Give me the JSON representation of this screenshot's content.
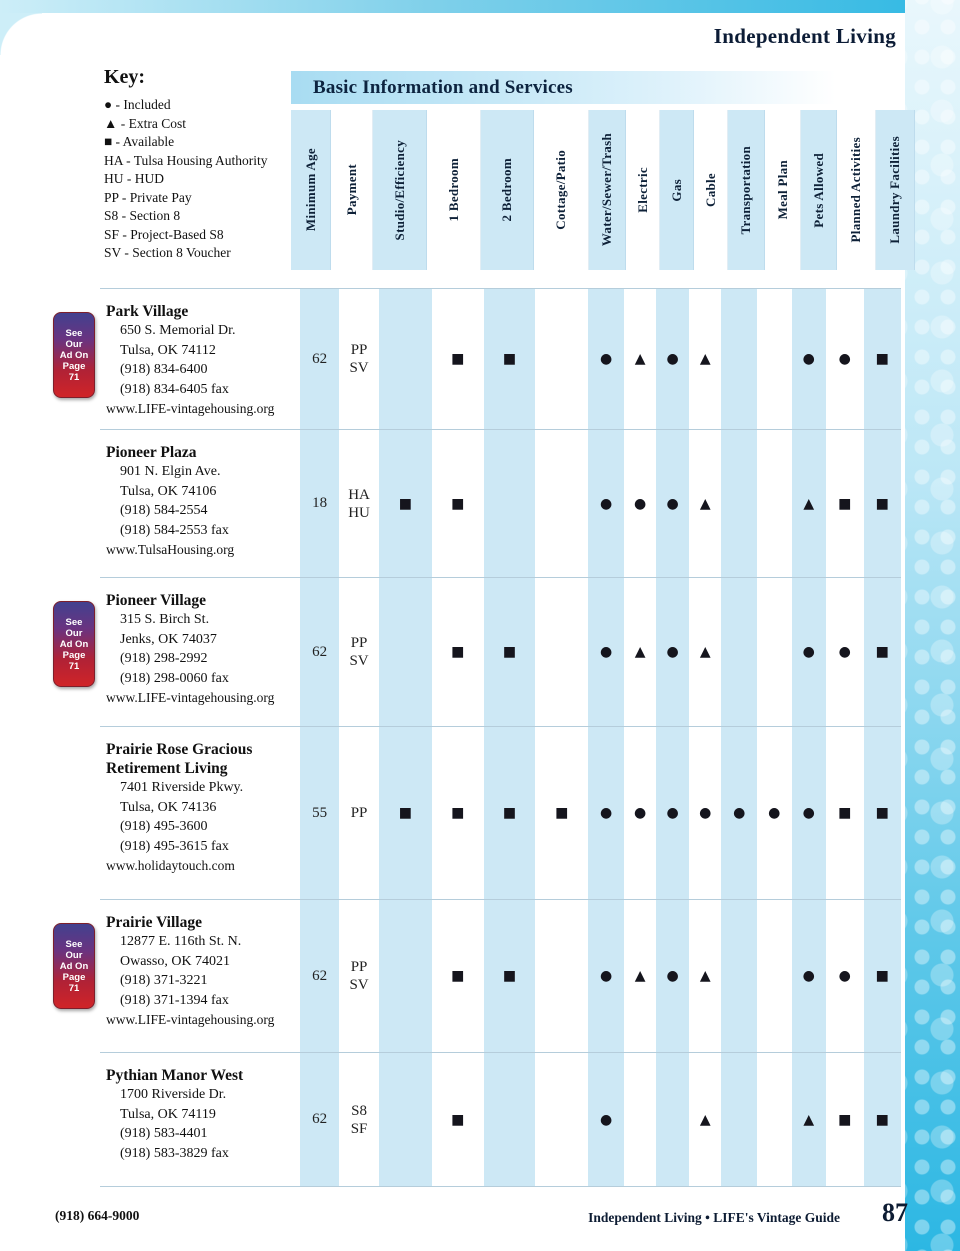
{
  "page": {
    "title": "Independent Living",
    "section_banner": "Basic Information and Services"
  },
  "key": {
    "title": "Key:",
    "items": [
      "● - Included",
      "▲ - Extra Cost",
      "■ - Available",
      "HA - Tulsa Housing Authority",
      "HU - HUD",
      "PP - Private Pay",
      "S8 - Section 8",
      "SF - Project-Based S8",
      "SV - Section 8 Voucher"
    ]
  },
  "columns": [
    "Minimum Age",
    "Payment",
    "Studio/Efficiency",
    "1 Bedroom",
    "2 Bedroom",
    "Cottage/Patio",
    "Water/Sewer/Trash",
    "Electric",
    "Gas",
    "Cable",
    "Transportation",
    "Meal Plan",
    "Pets Allowed",
    "Planned Activities",
    "Laundry Facilities"
  ],
  "ad_badge": {
    "lines": [
      "See",
      "Our",
      "Ad On",
      "Page",
      "71"
    ]
  },
  "legend_symbols": {
    "included": "●",
    "extra_cost": "▲",
    "available": "■"
  },
  "facilities": [
    {
      "name": "Park Village",
      "address": [
        "650 S. Memorial Dr.",
        "Tulsa, OK 74112",
        "(918) 834-6400",
        "(918) 834-6405 fax"
      ],
      "website": "www.LIFE-vintagehousing.org",
      "has_ad": true,
      "min_age": "62",
      "payment": [
        "PP",
        "SV"
      ],
      "services": [
        "",
        "■",
        "■",
        "",
        "●",
        "▲",
        "●",
        "▲",
        "",
        "",
        "●",
        "●",
        "■"
      ]
    },
    {
      "name": "Pioneer Plaza",
      "address": [
        "901 N. Elgin Ave.",
        "Tulsa, OK 74106",
        "(918) 584-2554",
        "(918) 584-2553 fax"
      ],
      "website": "www.TulsaHousing.org",
      "has_ad": false,
      "min_age": "18",
      "payment": [
        "HA",
        "HU"
      ],
      "services": [
        "■",
        "■",
        "",
        "",
        "●",
        "●",
        "●",
        "▲",
        "",
        "",
        "▲",
        "■",
        "■"
      ]
    },
    {
      "name": "Pioneer Village",
      "address": [
        "315 S. Birch St.",
        "Jenks, OK 74037",
        "(918) 298-2992",
        "(918) 298-0060 fax"
      ],
      "website": "www.LIFE-vintagehousing.org",
      "has_ad": true,
      "min_age": "62",
      "payment": [
        "PP",
        "SV"
      ],
      "services": [
        "",
        "■",
        "■",
        "",
        "●",
        "▲",
        "●",
        "▲",
        "",
        "",
        "●",
        "●",
        "■"
      ]
    },
    {
      "name": "Prairie Rose Gracious Retirement Living",
      "address": [
        "7401 Riverside Pkwy.",
        "Tulsa, OK 74136",
        "(918) 495-3600",
        "(918) 495-3615 fax"
      ],
      "website": "www.holidaytouch.com",
      "has_ad": false,
      "min_age": "55",
      "payment": [
        "PP"
      ],
      "services": [
        "■",
        "■",
        "■",
        "■",
        "●",
        "●",
        "●",
        "●",
        "●",
        "●",
        "●",
        "■",
        "■"
      ]
    },
    {
      "name": "Prairie Village",
      "address": [
        "12877 E. 116th St. N.",
        "Owasso, OK 74021",
        "(918) 371-3221",
        "(918) 371-1394 fax"
      ],
      "website": "www.LIFE-vintagehousing.org",
      "has_ad": true,
      "min_age": "62",
      "payment": [
        "PP",
        "SV"
      ],
      "services": [
        "",
        "■",
        "■",
        "",
        "●",
        "▲",
        "●",
        "▲",
        "",
        "",
        "●",
        "●",
        "■"
      ]
    },
    {
      "name": "Pythian Manor West",
      "address": [
        "1700 Riverside Dr.",
        "Tulsa, OK 74119",
        "(918) 583-4401",
        "(918) 583-3829 fax"
      ],
      "website": "",
      "has_ad": false,
      "min_age": "62",
      "payment": [
        "S8",
        "SF"
      ],
      "services": [
        "",
        "■",
        "",
        "",
        "●",
        "",
        "",
        "▲",
        "",
        "",
        "▲",
        "■",
        "■"
      ]
    }
  ],
  "footer": {
    "phone": "(918) 664-9000",
    "guide": "Independent Living • LIFE's Vintage Guide",
    "page_number": "87"
  },
  "colors": {
    "accent_cyan": "#2fb8e3",
    "stripe_blue": "#cde8f5",
    "navy": "#0d2440",
    "badge_red": "#d02428",
    "badge_purple": "#42418f"
  }
}
